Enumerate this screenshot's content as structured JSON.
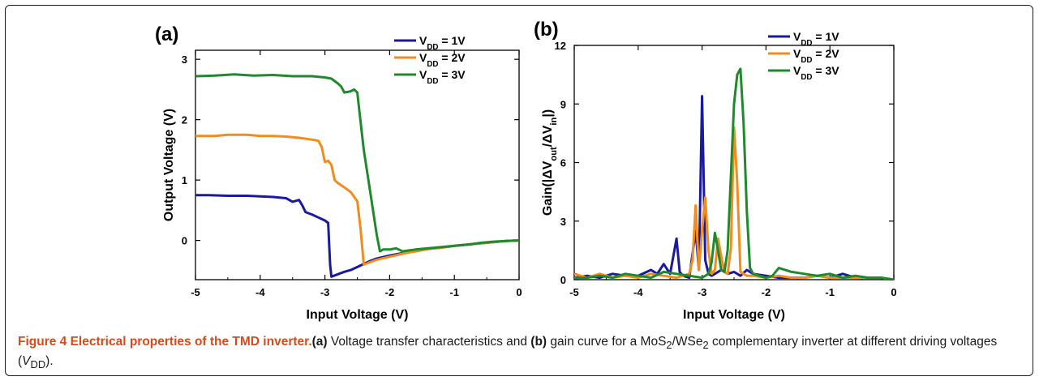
{
  "caption": {
    "title": "Figure 4 Electrical properties of the TMD inverter.",
    "label_a": "(a)",
    "text_1": " Voltage transfer characteristics and ",
    "label_b": "(b)",
    "text_2": " gain curve for a MoS",
    "sub_1": "2",
    "text_3": "/WSe",
    "sub_2": "2",
    "text_4": " complementary inverter at different driving voltages (",
    "vdd_v": "V",
    "vdd_sub": "DD",
    "text_5": ")."
  },
  "chart_data": [
    {
      "panel_label": "(a)",
      "type": "line",
      "xlabel": "Input Voltage (V)",
      "ylabel": "Output Voltage (V)",
      "xlim": [
        -5,
        0
      ],
      "ylim": [
        -0.65,
        3.15
      ],
      "xticks": [
        "-5",
        "-4",
        "-3",
        "-2",
        "-1",
        "0"
      ],
      "yticks": [
        "0",
        "1",
        "2",
        "3"
      ],
      "legend_position": "top-right",
      "series": [
        {
          "name": "V_DD = 1V",
          "color": "#1a1a9e",
          "x": [
            -5,
            -4.8,
            -4.5,
            -4.2,
            -4.0,
            -3.8,
            -3.6,
            -3.5,
            -3.4,
            -3.35,
            -3.3,
            -3.25,
            -3.2,
            -3.1,
            -3.0,
            -2.95,
            -2.92,
            -2.9,
            -2.8,
            -2.7,
            -2.6,
            -2.5,
            -2.4,
            -2.3,
            -2.2,
            -2.0,
            -1.8,
            -1.6,
            -1.4,
            -1.2,
            -1.0,
            -0.8,
            -0.6,
            -0.4,
            -0.2,
            0
          ],
          "y": [
            0.75,
            0.75,
            0.74,
            0.74,
            0.73,
            0.72,
            0.7,
            0.64,
            0.67,
            0.58,
            0.47,
            0.45,
            0.43,
            0.38,
            0.33,
            0.29,
            -0.4,
            -0.6,
            -0.56,
            -0.52,
            -0.49,
            -0.44,
            -0.39,
            -0.34,
            -0.3,
            -0.25,
            -0.21,
            -0.18,
            -0.14,
            -0.12,
            -0.09,
            -0.07,
            -0.05,
            -0.03,
            -0.01,
            0.0
          ]
        },
        {
          "name": "V_DD = 2V",
          "color": "#f28c1e",
          "x": [
            -5,
            -4.7,
            -4.5,
            -4.2,
            -4.0,
            -3.8,
            -3.6,
            -3.4,
            -3.2,
            -3.1,
            -3.05,
            -3.0,
            -2.95,
            -2.9,
            -2.85,
            -2.8,
            -2.7,
            -2.6,
            -2.5,
            -2.45,
            -2.4,
            -2.35,
            -2.2,
            -2.0,
            -1.8,
            -1.6,
            -1.4,
            -1.2,
            -1.0,
            -0.8,
            -0.6,
            -0.4,
            -0.2,
            0
          ],
          "y": [
            1.73,
            1.73,
            1.75,
            1.75,
            1.73,
            1.73,
            1.72,
            1.7,
            1.67,
            1.65,
            1.55,
            1.3,
            1.32,
            1.25,
            1.0,
            0.95,
            0.88,
            0.8,
            0.65,
            0.2,
            -0.4,
            -0.38,
            -0.32,
            -0.27,
            -0.22,
            -0.18,
            -0.14,
            -0.12,
            -0.09,
            -0.07,
            -0.05,
            -0.03,
            -0.01,
            0.0
          ]
        },
        {
          "name": "V_DD = 3V",
          "color": "#1f8a2c",
          "x": [
            -5,
            -4.7,
            -4.4,
            -4.1,
            -3.8,
            -3.5,
            -3.2,
            -3.0,
            -2.9,
            -2.8,
            -2.75,
            -2.7,
            -2.6,
            -2.55,
            -2.5,
            -2.4,
            -2.3,
            -2.2,
            -2.15,
            -2.1,
            -2.0,
            -1.9,
            -1.8,
            -1.6,
            -1.4,
            -1.2,
            -1.0,
            -0.8,
            -0.6,
            -0.4,
            -0.2,
            0
          ],
          "y": [
            2.72,
            2.73,
            2.75,
            2.73,
            2.74,
            2.72,
            2.72,
            2.7,
            2.68,
            2.6,
            2.55,
            2.45,
            2.47,
            2.5,
            2.45,
            1.5,
            0.8,
            0.1,
            -0.18,
            -0.15,
            -0.15,
            -0.13,
            -0.18,
            -0.15,
            -0.13,
            -0.11,
            -0.09,
            -0.07,
            -0.04,
            -0.02,
            -0.01,
            0.0
          ]
        }
      ]
    },
    {
      "panel_label": "(b)",
      "type": "line",
      "xlabel": "Input Voltage (V)",
      "ylabel": "Gain(|ΔV_out/ΔV_in|)",
      "xlim": [
        -5,
        0
      ],
      "ylim": [
        0,
        12
      ],
      "xticks": [
        "-5",
        "-4",
        "-3",
        "-2",
        "-1",
        "0"
      ],
      "yticks": [
        "0",
        "3",
        "6",
        "9",
        "12"
      ],
      "legend_position": "top-right",
      "series": [
        {
          "name": "V_DD = 1V",
          "color": "#1a1a9e",
          "x": [
            -5,
            -4.8,
            -4.6,
            -4.4,
            -4.2,
            -4.0,
            -3.8,
            -3.7,
            -3.6,
            -3.5,
            -3.4,
            -3.35,
            -3.3,
            -3.2,
            -3.1,
            -3.05,
            -3.0,
            -2.95,
            -2.9,
            -2.85,
            -2.8,
            -2.7,
            -2.6,
            -2.5,
            -2.4,
            -2.3,
            -2.2,
            -2.0,
            -1.8,
            -1.6,
            -1.4,
            -1.2,
            -1.0,
            -0.8,
            -0.6,
            -0.4,
            -0.2,
            0
          ],
          "y": [
            0.1,
            0.2,
            0.1,
            0.3,
            0.2,
            0.2,
            0.5,
            0.3,
            0.8,
            0.3,
            2.1,
            0.4,
            0.2,
            0.1,
            2.5,
            0.5,
            9.4,
            1.0,
            0.3,
            0.2,
            0.3,
            0.5,
            0.3,
            0.4,
            0.2,
            0.5,
            0.3,
            0.2,
            0.1,
            0.1,
            0.1,
            0.2,
            0.1,
            0.3,
            0.1,
            0.1,
            0.1,
            0.0
          ]
        },
        {
          "name": "V_DD = 2V",
          "color": "#f28c1e",
          "x": [
            -5,
            -4.8,
            -4.6,
            -4.4,
            -4.2,
            -4.0,
            -3.8,
            -3.6,
            -3.4,
            -3.2,
            -3.15,
            -3.1,
            -3.05,
            -3.0,
            -2.95,
            -2.9,
            -2.85,
            -2.8,
            -2.75,
            -2.7,
            -2.65,
            -2.6,
            -2.55,
            -2.5,
            -2.45,
            -2.4,
            -2.35,
            -2.3,
            -2.2,
            -2.0,
            -1.8,
            -1.6,
            -1.4,
            -1.2,
            -1.0,
            -0.8,
            -0.6,
            -0.4,
            -0.2,
            0
          ],
          "y": [
            0.3,
            0.1,
            0.3,
            0.1,
            0.2,
            0.1,
            0.3,
            0.2,
            0.1,
            0.3,
            1.0,
            3.8,
            0.5,
            2.5,
            4.2,
            1.5,
            0.3,
            0.5,
            2.1,
            1.2,
            0.4,
            0.3,
            1.6,
            7.8,
            5.0,
            0.4,
            0.3,
            0.2,
            0.2,
            0.1,
            0.2,
            0.1,
            0.1,
            0.2,
            0.1,
            0.1,
            0.1,
            0.1,
            0.1,
            0.0
          ]
        },
        {
          "name": "V_DD = 3V",
          "color": "#1f8a2c",
          "x": [
            -5,
            -4.8,
            -4.6,
            -4.4,
            -4.2,
            -4.0,
            -3.8,
            -3.6,
            -3.4,
            -3.2,
            -3.0,
            -2.9,
            -2.85,
            -2.8,
            -2.75,
            -2.7,
            -2.65,
            -2.6,
            -2.5,
            -2.45,
            -2.4,
            -2.35,
            -2.3,
            -2.25,
            -2.2,
            -2.1,
            -2.0,
            -1.9,
            -1.8,
            -1.6,
            -1.4,
            -1.2,
            -1.0,
            -0.8,
            -0.6,
            -0.4,
            -0.2,
            0
          ],
          "y": [
            0.1,
            0.1,
            0.2,
            0.1,
            0.3,
            0.2,
            0.1,
            0.4,
            0.3,
            0.2,
            0.1,
            0.3,
            0.9,
            2.4,
            1.5,
            0.5,
            0.4,
            1.5,
            9.0,
            10.5,
            10.8,
            8.0,
            3.5,
            0.6,
            0.3,
            0.2,
            0.1,
            0.2,
            0.6,
            0.4,
            0.3,
            0.2,
            0.3,
            0.1,
            0.2,
            0.1,
            0.1,
            0.0
          ]
        }
      ]
    }
  ]
}
